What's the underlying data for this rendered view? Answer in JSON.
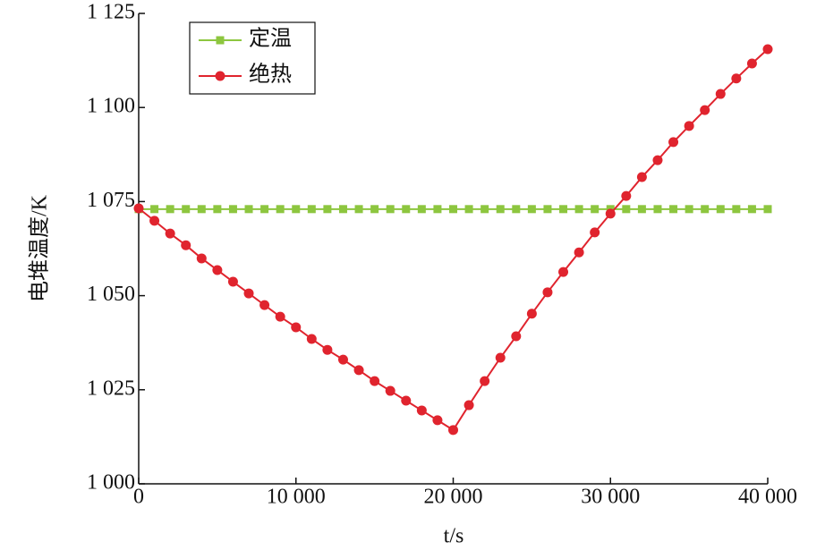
{
  "chart_data": {
    "type": "line",
    "x_label": "t/s",
    "y_label": "电堆温度/K",
    "x": [
      0,
      1000,
      2000,
      3000,
      4000,
      5000,
      6000,
      7000,
      8000,
      9000,
      10000,
      11000,
      12000,
      13000,
      14000,
      15000,
      16000,
      17000,
      18000,
      19000,
      20000,
      21000,
      22000,
      23000,
      24000,
      25000,
      26000,
      27000,
      28000,
      29000,
      30000,
      31000,
      32000,
      33000,
      34000,
      35000,
      36000,
      37000,
      38000,
      39000,
      40000
    ],
    "series": [
      {
        "name": "定温",
        "color": "#8dc63f",
        "marker": "square",
        "values": [
          1073,
          1073,
          1073,
          1073,
          1073,
          1073,
          1073,
          1073,
          1073,
          1073,
          1073,
          1073,
          1073,
          1073,
          1073,
          1073,
          1073,
          1073,
          1073,
          1073,
          1073,
          1073,
          1073,
          1073,
          1073,
          1073,
          1073,
          1073,
          1073,
          1073,
          1073,
          1073,
          1073,
          1073,
          1073,
          1073,
          1073,
          1073,
          1073,
          1073,
          1073
        ]
      },
      {
        "name": "绝热",
        "color": "#e0242e",
        "marker": "circle",
        "values": [
          1073.2,
          1069.9,
          1066.5,
          1063.4,
          1059.9,
          1056.8,
          1053.7,
          1050.6,
          1047.5,
          1044.4,
          1041.6,
          1038.5,
          1035.6,
          1033.0,
          1030.2,
          1027.3,
          1024.7,
          1022.1,
          1019.5,
          1016.9,
          1014.3,
          1020.9,
          1027.3,
          1033.5,
          1039.2,
          1045.2,
          1050.9,
          1056.3,
          1061.5,
          1066.8,
          1071.8,
          1076.5,
          1081.5,
          1086.0,
          1090.8,
          1095.1,
          1099.3,
          1103.6,
          1107.7,
          1111.7,
          1115.5
        ]
      }
    ],
    "xlim": [
      0,
      40000
    ],
    "xticks": [
      0,
      {
        "value": 10000,
        "label": "10 000"
      },
      {
        "value": 20000,
        "label": "20 000"
      },
      {
        "value": 30000,
        "label": "30 000"
      },
      {
        "value": 40000,
        "label": "40 000"
      }
    ],
    "ylim": [
      1000,
      1125
    ],
    "yticks": [
      {
        "value": 1000,
        "label": "1 000"
      },
      {
        "value": 1025,
        "label": "1 025"
      },
      {
        "value": 1050,
        "label": "1 050"
      },
      {
        "value": 1075,
        "label": "1 075"
      },
      {
        "value": 1100,
        "label": "1 100"
      },
      {
        "value": 1125,
        "label": "1 125"
      }
    ],
    "legend": "upper left"
  }
}
